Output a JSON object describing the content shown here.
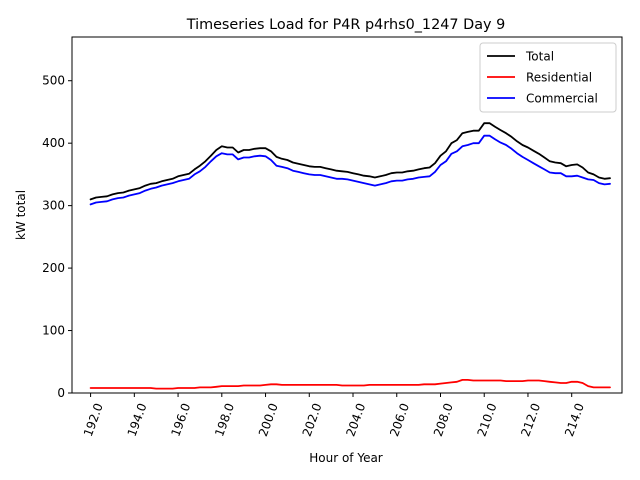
{
  "chart_data": {
    "type": "line",
    "title": "Timeseries Load for P4R p4rhs0_1247  Day 9",
    "xlabel": "Hour of Year",
    "ylabel": "kW total",
    "xlim": [
      191.15,
      216.3
    ],
    "ylim": [
      0,
      570
    ],
    "xticks": [
      192,
      194,
      196,
      198,
      200,
      202,
      204,
      206,
      208,
      210,
      212,
      214
    ],
    "xtick_labels": [
      "192.0",
      "194.0",
      "196.0",
      "198.0",
      "200.0",
      "202.0",
      "204.0",
      "206.0",
      "208.0",
      "210.0",
      "212.0",
      "214.0"
    ],
    "yticks": [
      0,
      100,
      200,
      300,
      400,
      500
    ],
    "ytick_labels": [
      "0",
      "100",
      "200",
      "300",
      "400",
      "500"
    ],
    "legend_position": "top-right",
    "x": [
      192.0,
      192.25,
      192.5,
      192.75,
      193.0,
      193.25,
      193.5,
      193.75,
      194.0,
      194.25,
      194.5,
      194.75,
      195.0,
      195.25,
      195.5,
      195.75,
      196.0,
      196.25,
      196.5,
      196.75,
      197.0,
      197.25,
      197.5,
      197.75,
      198.0,
      198.25,
      198.5,
      198.75,
      199.0,
      199.25,
      199.5,
      199.75,
      200.0,
      200.25,
      200.5,
      200.75,
      201.0,
      201.25,
      201.5,
      201.75,
      202.0,
      202.25,
      202.5,
      202.75,
      203.0,
      203.25,
      203.5,
      203.75,
      204.0,
      204.25,
      204.5,
      204.75,
      205.0,
      205.25,
      205.5,
      205.75,
      206.0,
      206.25,
      206.5,
      206.75,
      207.0,
      207.25,
      207.5,
      207.75,
      208.0,
      208.25,
      208.5,
      208.75,
      209.0,
      209.25,
      209.5,
      209.75,
      210.0,
      210.25,
      210.5,
      210.75,
      211.0,
      211.25,
      211.5,
      211.75,
      212.0,
      212.25,
      212.5,
      212.75,
      213.0,
      213.25,
      213.5,
      213.75,
      214.0,
      214.25,
      214.5,
      214.75,
      215.0,
      215.25,
      215.5,
      215.75
    ],
    "series": [
      {
        "name": "Total",
        "color": "#000000",
        "values": [
          310,
          313,
          314,
          315,
          318,
          320,
          321,
          324,
          326,
          328,
          332,
          335,
          336,
          339,
          341,
          343,
          347,
          349,
          351,
          358,
          364,
          371,
          380,
          389,
          395,
          393,
          393,
          385,
          389,
          389,
          391,
          392,
          392,
          387,
          378,
          375,
          373,
          369,
          367,
          365,
          363,
          362,
          362,
          360,
          358,
          356,
          355,
          354,
          352,
          350,
          348,
          347,
          345,
          347,
          349,
          352,
          353,
          353,
          355,
          356,
          358,
          360,
          361,
          368,
          380,
          387,
          400,
          405,
          416,
          418,
          420,
          420,
          432,
          432,
          426,
          421,
          416,
          410,
          403,
          397,
          393,
          388,
          383,
          377,
          371,
          369,
          368,
          363,
          365,
          366,
          361,
          353,
          350,
          345,
          343,
          344
        ]
      },
      {
        "name": "Residential",
        "color": "#ff0000",
        "values": [
          8,
          8,
          8,
          8,
          8,
          8,
          8,
          8,
          8,
          8,
          8,
          8,
          7,
          7,
          7,
          7,
          8,
          8,
          8,
          8,
          9,
          9,
          9,
          10,
          11,
          11,
          11,
          11,
          12,
          12,
          12,
          12,
          13,
          14,
          14,
          13,
          13,
          13,
          13,
          13,
          13,
          13,
          13,
          13,
          13,
          13,
          12,
          12,
          12,
          12,
          12,
          13,
          13,
          13,
          13,
          13,
          13,
          13,
          13,
          13,
          13,
          14,
          14,
          14,
          15,
          16,
          17,
          18,
          21,
          21,
          20,
          20,
          20,
          20,
          20,
          20,
          19,
          19,
          19,
          19,
          20,
          20,
          20,
          19,
          18,
          17,
          16,
          16,
          18,
          18,
          16,
          11,
          9,
          9,
          9,
          9
        ]
      },
      {
        "name": "Commercial",
        "color": "#0000ff",
        "values": [
          302,
          305,
          306,
          307,
          310,
          312,
          313,
          316,
          318,
          320,
          324,
          327,
          329,
          332,
          334,
          336,
          339,
          341,
          343,
          350,
          355,
          362,
          371,
          379,
          384,
          382,
          382,
          374,
          377,
          377,
          379,
          380,
          379,
          373,
          364,
          362,
          360,
          356,
          354,
          352,
          350,
          349,
          349,
          347,
          345,
          343,
          343,
          342,
          340,
          338,
          336,
          334,
          332,
          334,
          336,
          339,
          340,
          340,
          342,
          343,
          345,
          346,
          347,
          354,
          365,
          371,
          383,
          387,
          395,
          397,
          400,
          400,
          412,
          412,
          406,
          401,
          397,
          391,
          384,
          378,
          373,
          368,
          363,
          358,
          353,
          352,
          352,
          347,
          347,
          348,
          345,
          342,
          341,
          336,
          334,
          335
        ]
      }
    ]
  }
}
